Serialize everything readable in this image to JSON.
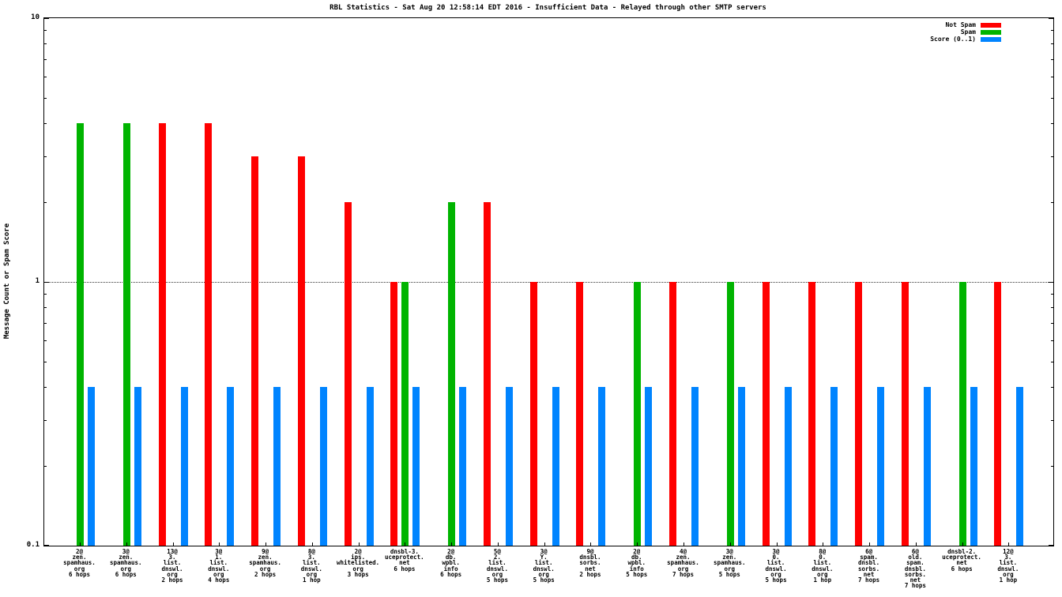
{
  "chart_data": {
    "type": "bar",
    "title": "RBL Statistics - Sat Aug 20 12:58:14 EDT 2016 - Insufficient Data - Relayed through other SMTP servers",
    "ylabel": "Message Count or Spam Score",
    "xlabel": "",
    "yscale": "log",
    "ylim": [
      0.1,
      10
    ],
    "ytick_values": [
      10,
      1,
      0.1
    ],
    "ytick_labels": [
      "10",
      "1",
      "0.1"
    ],
    "grid_values": [
      1
    ],
    "grid": "dotted-major",
    "legend_position": "top-right-inside",
    "series_meta": [
      {
        "key": "not_spam",
        "label": "Not Spam",
        "color": "#ff0000"
      },
      {
        "key": "spam",
        "label": "Spam",
        "color": "#00b400"
      },
      {
        "key": "score",
        "label": "Score (0..1)",
        "color": "#0084ff"
      }
    ],
    "groups": [
      {
        "label_lines": [
          "2@",
          "zen.",
          "spamhaus.",
          "org",
          "6 hops"
        ],
        "not_spam": null,
        "spam": 4,
        "score": 0.4
      },
      {
        "label_lines": [
          "3@",
          "zen.",
          "spamhaus.",
          "org",
          "6 hops"
        ],
        "not_spam": null,
        "spam": 4,
        "score": 0.4
      },
      {
        "label_lines": [
          "13@",
          "3.",
          "list.",
          "dnswl.",
          "org",
          "2 hops"
        ],
        "not_spam": 4,
        "spam": null,
        "score": 0.4
      },
      {
        "label_lines": [
          "3@",
          "1.",
          "list.",
          "dnswl.",
          "org",
          "4 hops"
        ],
        "not_spam": 4,
        "spam": null,
        "score": 0.4
      },
      {
        "label_lines": [
          "9@",
          "zen.",
          "spamhaus.",
          "org",
          "2 hops"
        ],
        "not_spam": 3,
        "spam": null,
        "score": 0.4
      },
      {
        "label_lines": [
          "8@",
          "3.",
          "list.",
          "dnswl.",
          "org",
          "1 hop"
        ],
        "not_spam": 3,
        "spam": null,
        "score": 0.4
      },
      {
        "label_lines": [
          "2@",
          "ips.",
          "whitelisted.",
          "org",
          "3 hops"
        ],
        "not_spam": 2,
        "spam": null,
        "score": 0.4
      },
      {
        "label_lines": [
          "dnsbl-3.",
          "uceprotect.",
          "net",
          "6 hops"
        ],
        "not_spam": 1,
        "spam": 1,
        "score": 0.4
      },
      {
        "label_lines": [
          "2@",
          "db.",
          "wpbl.",
          "info",
          "6 hops"
        ],
        "not_spam": null,
        "spam": 2,
        "score": 0.4
      },
      {
        "label_lines": [
          "5@",
          "2.",
          "list.",
          "dnswl.",
          "org",
          "5 hops"
        ],
        "not_spam": 2,
        "spam": null,
        "score": 0.4
      },
      {
        "label_lines": [
          "3@",
          "Y.",
          "list.",
          "dnswl.",
          "org",
          "5 hops"
        ],
        "not_spam": 1,
        "spam": null,
        "score": 0.4
      },
      {
        "label_lines": [
          "9@",
          "dnsbl.",
          "sorbs.",
          "net",
          "2 hops"
        ],
        "not_spam": 1,
        "spam": null,
        "score": 0.4
      },
      {
        "label_lines": [
          "2@",
          "db.",
          "wpbl.",
          "info",
          "5 hops"
        ],
        "not_spam": null,
        "spam": 1,
        "score": 0.4
      },
      {
        "label_lines": [
          "4@",
          "zen.",
          "spamhaus.",
          "org",
          "7 hops"
        ],
        "not_spam": 1,
        "spam": null,
        "score": 0.4
      },
      {
        "label_lines": [
          "3@",
          "zen.",
          "spamhaus.",
          "org",
          "5 hops"
        ],
        "not_spam": null,
        "spam": 1,
        "score": 0.4
      },
      {
        "label_lines": [
          "3@",
          "0.",
          "list.",
          "dnswl.",
          "org",
          "5 hops"
        ],
        "not_spam": 1,
        "spam": null,
        "score": 0.4
      },
      {
        "label_lines": [
          "8@",
          "0.",
          "list.",
          "dnswl.",
          "org",
          "1 hop"
        ],
        "not_spam": 1,
        "spam": null,
        "score": 0.4
      },
      {
        "label_lines": [
          "6@",
          "spam.",
          "dnsbl.",
          "sorbs.",
          "net",
          "7 hops"
        ],
        "not_spam": 1,
        "spam": null,
        "score": 0.4
      },
      {
        "label_lines": [
          "6@",
          "old.",
          "spam.",
          "dnsbl.",
          "sorbs.",
          "net",
          "7 hops"
        ],
        "not_spam": 1,
        "spam": null,
        "score": 0.4
      },
      {
        "label_lines": [
          "dnsbl-2.",
          "uceprotect.",
          "net",
          "6 hops"
        ],
        "not_spam": null,
        "spam": 1,
        "score": 0.4
      },
      {
        "label_lines": [
          "12@",
          "3.",
          "list.",
          "dnswl.",
          "org",
          "1 hop"
        ],
        "not_spam": 1,
        "spam": null,
        "score": 0.4
      }
    ]
  }
}
